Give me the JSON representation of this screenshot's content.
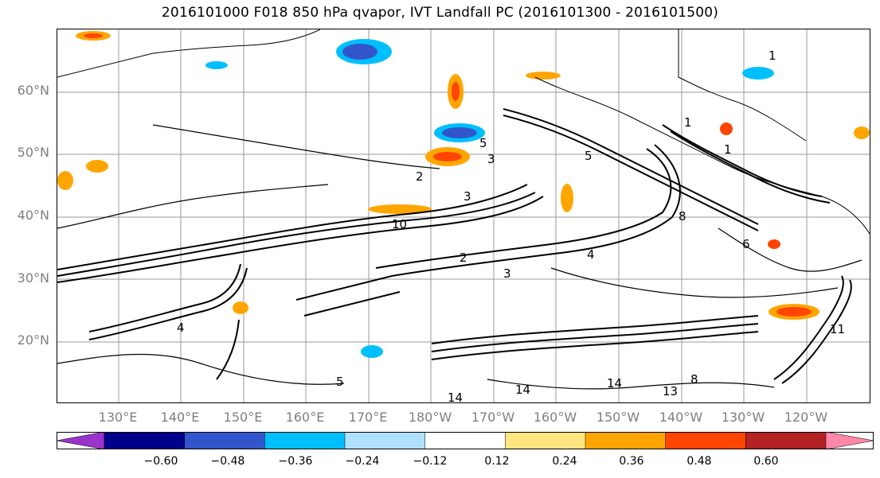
{
  "title": "2016101000 F018 850 hPa qvapor, IVT Landfall PC (2016101300 - 2016101500)",
  "map": {
    "lat_labels": [
      "60°N",
      "50°N",
      "40°N",
      "30°N",
      "20°N"
    ],
    "lon_labels": [
      "130°E",
      "140°E",
      "150°E",
      "160°E",
      "170°E",
      "180°W",
      "170°W",
      "160°W",
      "150°W",
      "140°W",
      "130°W",
      "120°W"
    ],
    "contour_labels": [
      "1",
      "1",
      "1",
      "5",
      "5",
      "3",
      "2",
      "3",
      "10",
      "2",
      "3",
      "4",
      "5",
      "8",
      "6",
      "4",
      "11",
      "14",
      "14",
      "14",
      "13",
      "8"
    ]
  },
  "colorbar": {
    "colors": [
      "#9933cc",
      "#00008b",
      "#3355cc",
      "#00bfff",
      "#b0e0ff",
      "#ffffff",
      "#ffe680",
      "#ffa500",
      "#ff4500",
      "#b22222",
      "#ff88aa"
    ],
    "tick_labels": [
      "−0.60",
      "−0.48",
      "−0.36",
      "−0.24",
      "−0.12",
      "0.12",
      "0.24",
      "0.36",
      "0.48",
      "0.60"
    ]
  }
}
